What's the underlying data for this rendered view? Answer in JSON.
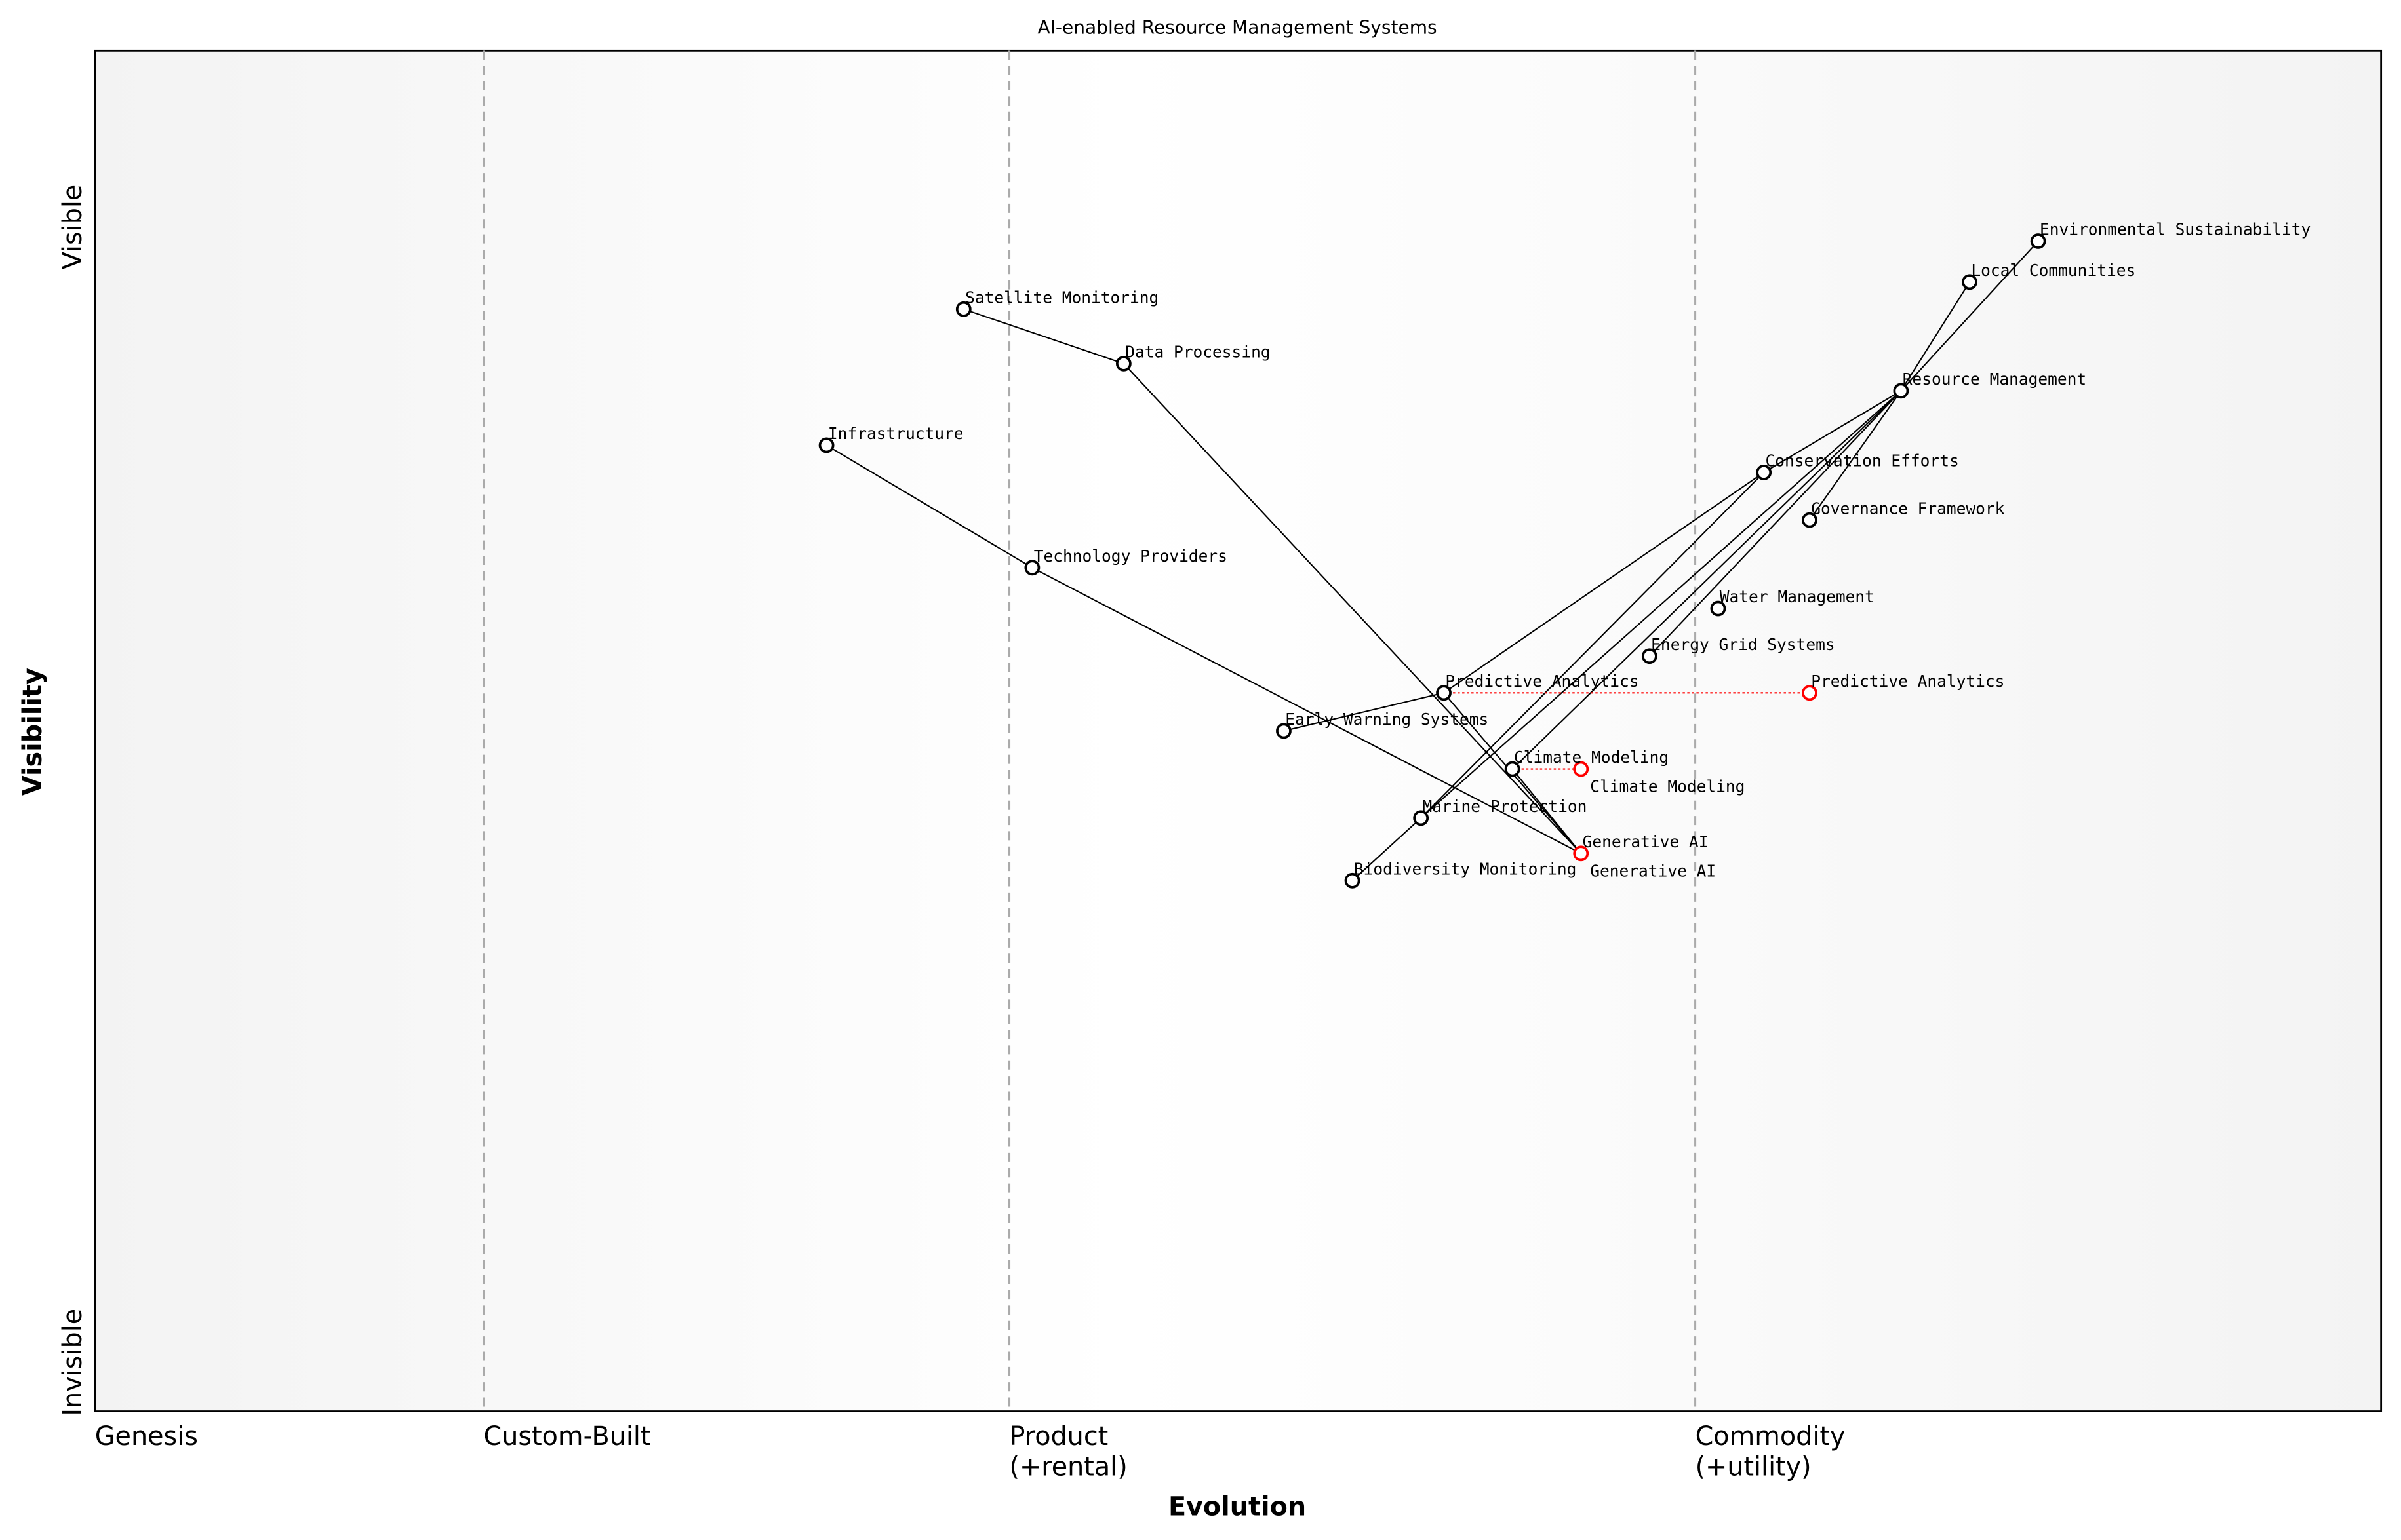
{
  "title": "AI-enabled Resource Management Systems",
  "x_axis_label": "Evolution",
  "y_axis_label": "Visibility",
  "y_top_label": "Visible",
  "y_bottom_label": "Invisible",
  "stages": [
    {
      "label": "Genesis",
      "sub": "",
      "position": 0.0
    },
    {
      "label": "Custom-Built",
      "sub": "",
      "position": 0.17
    },
    {
      "label": "Product",
      "sub": "(+rental)",
      "position": 0.4
    },
    {
      "label": "Commodity",
      "sub": "(+utility)",
      "position": 0.7
    }
  ],
  "colors": {
    "node": "#000000",
    "evolved": "#ff0000",
    "divider": "#aaaaaa"
  },
  "components": [
    {
      "name": "Environmental Sustainability",
      "evolution": 0.85,
      "visibility": 0.86
    },
    {
      "name": "Local Communities",
      "evolution": 0.82,
      "visibility": 0.83
    },
    {
      "name": "Resource Management",
      "evolution": 0.79,
      "visibility": 0.75
    },
    {
      "name": "Conservation Efforts",
      "evolution": 0.73,
      "visibility": 0.69
    },
    {
      "name": "Governance Framework",
      "evolution": 0.75,
      "visibility": 0.655
    },
    {
      "name": "Water Management",
      "evolution": 0.71,
      "visibility": 0.59
    },
    {
      "name": "Energy Grid Systems",
      "evolution": 0.68,
      "visibility": 0.555
    },
    {
      "name": "Predictive Analytics",
      "evolution": 0.59,
      "visibility": 0.528
    },
    {
      "name": "Early Warning Systems",
      "evolution": 0.52,
      "visibility": 0.5
    },
    {
      "name": "Climate Modeling",
      "evolution": 0.62,
      "visibility": 0.472
    },
    {
      "name": "Marine Protection",
      "evolution": 0.58,
      "visibility": 0.436
    },
    {
      "name": "Biodiversity Monitoring",
      "evolution": 0.55,
      "visibility": 0.39
    },
    {
      "name": "Generative AI",
      "evolution": 0.65,
      "visibility": 0.41
    },
    {
      "name": "Satellite Monitoring",
      "evolution": 0.38,
      "visibility": 0.81
    },
    {
      "name": "Data Processing",
      "evolution": 0.45,
      "visibility": 0.77
    },
    {
      "name": "Infrastructure",
      "evolution": 0.32,
      "visibility": 0.71
    },
    {
      "name": "Technology Providers",
      "evolution": 0.41,
      "visibility": 0.62
    }
  ],
  "links": [
    [
      "Environmental Sustainability",
      "Resource Management"
    ],
    [
      "Local Communities",
      "Resource Management"
    ],
    [
      "Resource Management",
      "Conservation Efforts"
    ],
    [
      "Resource Management",
      "Governance Framework"
    ],
    [
      "Resource Management",
      "Energy Grid Systems"
    ],
    [
      "Resource Management",
      "Climate Modeling"
    ],
    [
      "Resource Management",
      "Marine Protection"
    ],
    [
      "Conservation Efforts",
      "Predictive Analytics"
    ],
    [
      "Conservation Efforts",
      "Marine Protection"
    ],
    [
      "Marine Protection",
      "Biodiversity Monitoring"
    ],
    [
      "Predictive Analytics",
      "Early Warning Systems"
    ],
    [
      "Predictive Analytics",
      "Generative AI"
    ],
    [
      "Climate Modeling",
      "Generative AI"
    ],
    [
      "Satellite Monitoring",
      "Data Processing"
    ],
    [
      "Data Processing",
      "Generative AI"
    ],
    [
      "Infrastructure",
      "Technology Providers"
    ],
    [
      "Technology Providers",
      "Generative AI"
    ]
  ],
  "evolutions": [
    {
      "name": "Predictive Analytics",
      "to": 0.75
    },
    {
      "name": "Climate Modeling",
      "to": 0.65
    },
    {
      "name": "Generative AI",
      "to": 0.65
    }
  ]
}
